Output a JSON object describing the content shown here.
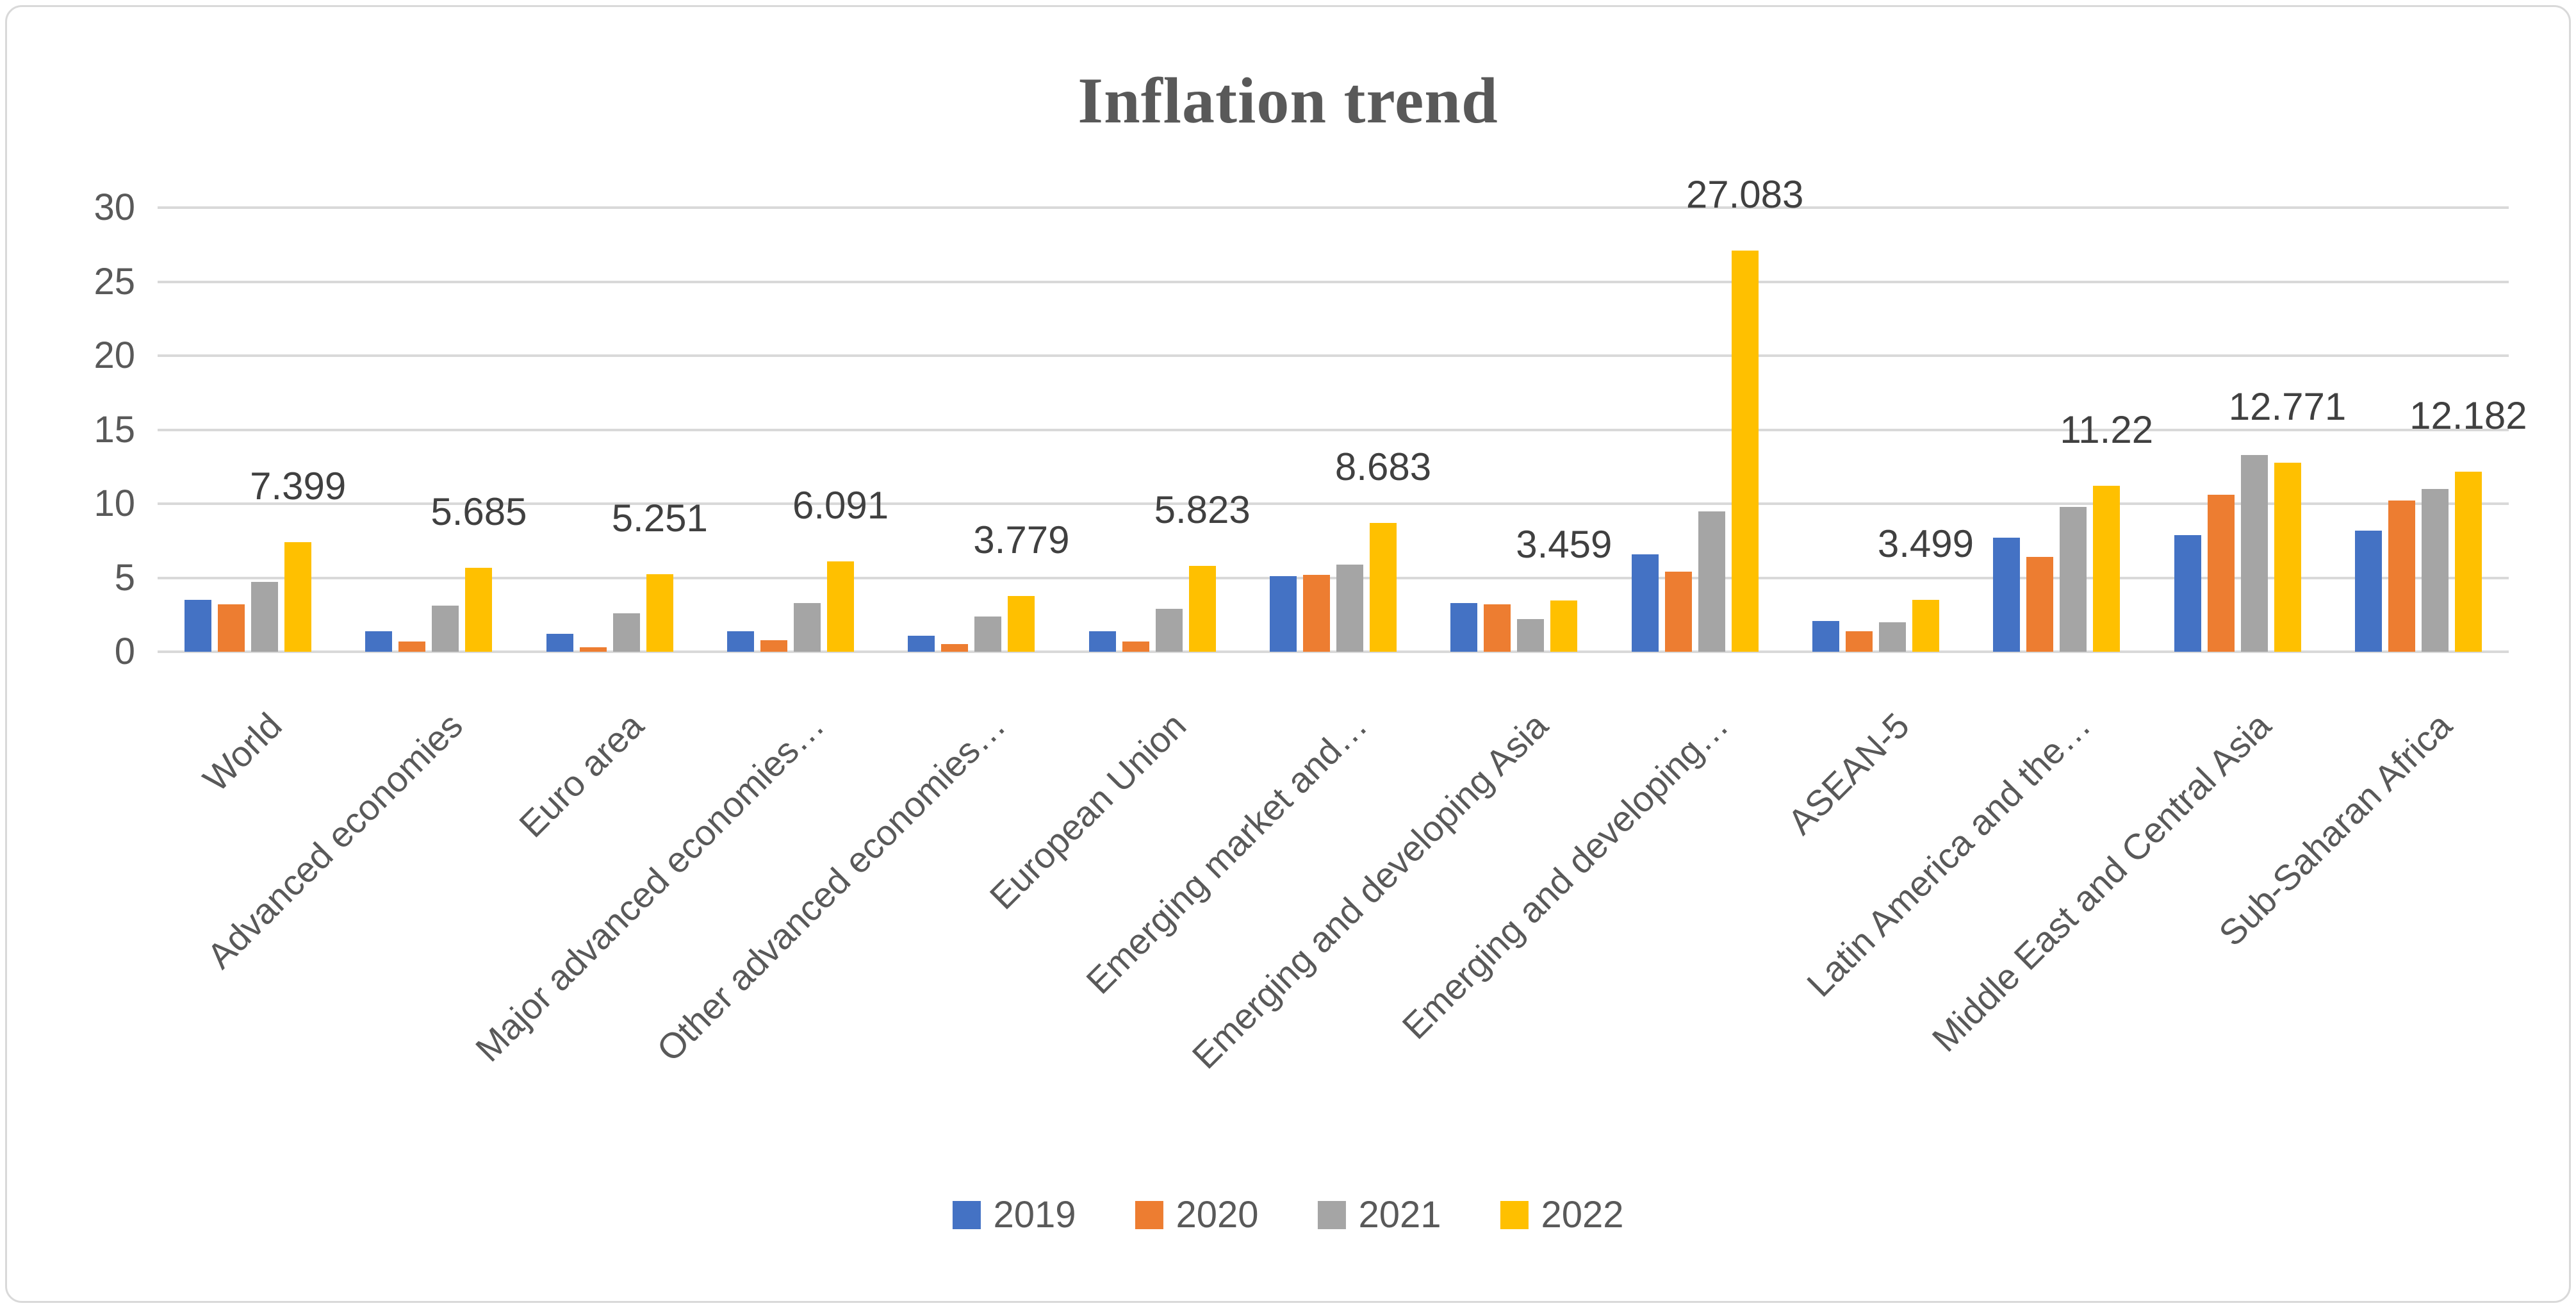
{
  "title": "Inflation trend",
  "chart_data": {
    "type": "bar",
    "title": "Inflation trend",
    "categories": [
      "World",
      "Advanced economies",
      "Euro area",
      "Major advanced economies…",
      "Other advanced economies…",
      "European Union",
      "Emerging market and…",
      "Emerging and developing Asia",
      "Emerging and developing…",
      "ASEAN-5",
      "Latin America and the…",
      "Middle East and Central Asia",
      "Sub-Saharan Africa"
    ],
    "series": [
      {
        "name": "2019",
        "color": "#4472C4",
        "values": [
          3.5,
          1.4,
          1.2,
          1.4,
          1.1,
          1.4,
          5.1,
          3.3,
          6.6,
          2.1,
          7.7,
          7.9,
          8.2
        ]
      },
      {
        "name": "2020",
        "color": "#ED7D31",
        "values": [
          3.2,
          0.7,
          0.3,
          0.8,
          0.5,
          0.7,
          5.2,
          3.2,
          5.4,
          1.4,
          6.4,
          10.6,
          10.2
        ]
      },
      {
        "name": "2021",
        "color": "#A5A5A5",
        "values": [
          4.7,
          3.1,
          2.6,
          3.3,
          2.4,
          2.9,
          5.9,
          2.2,
          9.5,
          2.0,
          9.8,
          13.3,
          11.0
        ]
      },
      {
        "name": "2022",
        "color": "#FFC000",
        "values": [
          7.399,
          5.685,
          5.251,
          6.091,
          3.779,
          5.823,
          8.683,
          3.459,
          27.083,
          3.499,
          11.22,
          12.771,
          12.182
        ],
        "data_labels": [
          "7.399",
          "5.685",
          "5.251",
          "6.091",
          "3.779",
          "5.823",
          "8.683",
          "3.459",
          "27.083",
          "3.499",
          "11.22",
          "12.771",
          "12.182"
        ]
      }
    ],
    "ylim": [
      0,
      30
    ],
    "yticks": [
      0,
      5,
      10,
      15,
      20,
      25,
      30
    ],
    "grid": true,
    "legend_position": "bottom",
    "legend_items": [
      "2019",
      "2020",
      "2021",
      "2022"
    ],
    "gridline_color": "#D9D9D9",
    "axis_text_color": "#595959",
    "data_label_color": "#404040",
    "title_color": "#595959"
  }
}
